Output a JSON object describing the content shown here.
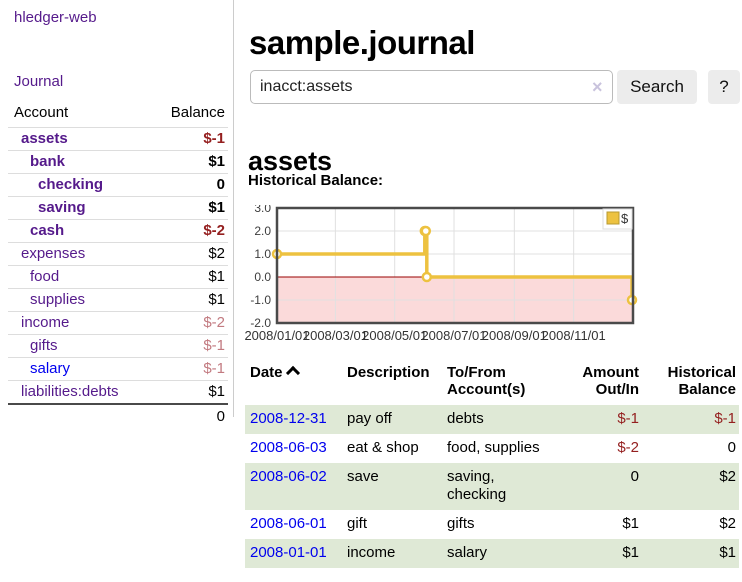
{
  "app": {
    "brand": "hledger-web",
    "nav_journal": "Journal"
  },
  "sidebar": {
    "header": {
      "account": "Account",
      "balance": "Balance"
    },
    "accounts": [
      {
        "name": "assets",
        "balance": "$-1"
      },
      {
        "name": "bank",
        "balance": "$1"
      },
      {
        "name": "checking",
        "balance": "0"
      },
      {
        "name": "saving",
        "balance": "$1"
      },
      {
        "name": "cash",
        "balance": "$-2"
      },
      {
        "name": "expenses",
        "balance": "$2"
      },
      {
        "name": "food",
        "balance": "$1"
      },
      {
        "name": "supplies",
        "balance": "$1"
      },
      {
        "name": "income",
        "balance": "$-2"
      },
      {
        "name": "gifts",
        "balance": "$-1"
      },
      {
        "name": "salary",
        "balance": "$-1"
      },
      {
        "name": "liabilities:debts",
        "balance": "$1"
      }
    ],
    "total": "0"
  },
  "header": {
    "title": "sample.journal"
  },
  "search": {
    "value": "inacct:assets",
    "clear_label": "×",
    "button_label": "Search",
    "help_label": "?"
  },
  "account_page": {
    "heading": "assets",
    "chart_label": "Historical Balance:"
  },
  "chart_data": {
    "type": "line",
    "title": "Historical Balance",
    "series": [
      {
        "name": "$",
        "color": "#EDC240",
        "step": true,
        "points": [
          {
            "date": "2008-01-01",
            "value": 1
          },
          {
            "date": "2008-06-01",
            "value": 2
          },
          {
            "date": "2008-06-02",
            "value": 2
          },
          {
            "date": "2008-06-03",
            "value": 0
          },
          {
            "date": "2008-12-31",
            "value": -1
          }
        ]
      }
    ],
    "ylim": [
      -2,
      3
    ],
    "yticks": [
      {
        "v": 3,
        "label": "3.0"
      },
      {
        "v": 2,
        "label": "2.0"
      },
      {
        "v": 1,
        "label": "1.0"
      },
      {
        "v": 0,
        "label": "0.0"
      },
      {
        "v": -1,
        "label": "-1.0"
      },
      {
        "v": -2,
        "label": "-2.0"
      }
    ],
    "x_start": "2008-01-01",
    "x_end": "2009-01-01",
    "xticks": [
      {
        "date": "2008-01-01",
        "label": "2008/01/01"
      },
      {
        "date": "2008-03-01",
        "label": "2008/03/01"
      },
      {
        "date": "2008-05-01",
        "label": "2008/05/01"
      },
      {
        "date": "2008-07-01",
        "label": "2008/07/01"
      },
      {
        "date": "2008-09-01",
        "label": "2008/09/01"
      },
      {
        "date": "2008-11-01",
        "label": "2008/11/01"
      }
    ],
    "legend": {
      "position": "ne",
      "entries": [
        {
          "label": "$",
          "color": "#EDC240"
        }
      ]
    },
    "grid": true,
    "grid_color": "#e0e0e0",
    "border_color": "#4a4a4a",
    "zero_line_color": "#990000",
    "negative_region_color": "#fbdada"
  },
  "register": {
    "columns": {
      "date": "Date",
      "description": "Description",
      "tofrom_line1": "To/From",
      "tofrom_line2": "Account(s)",
      "amount_line1": "Amount",
      "amount_line2": "Out/In",
      "hist_line1": "Historical",
      "hist_line2": "Balance"
    },
    "rows": [
      {
        "date": "2008-12-31",
        "description": "pay off",
        "accounts": "debts",
        "amount": "$-1",
        "balance": "$-1"
      },
      {
        "date": "2008-06-03",
        "description": "eat & shop",
        "accounts": "food, supplies",
        "amount": "$-2",
        "balance": "0"
      },
      {
        "date": "2008-06-02",
        "description": "save",
        "accounts": "saving, checking",
        "amount": "0",
        "balance": "$2"
      },
      {
        "date": "2008-06-01",
        "description": "gift",
        "accounts": "gifts",
        "amount": "$1",
        "balance": "$2"
      },
      {
        "date": "2008-01-01",
        "description": "income",
        "accounts": "salary",
        "amount": "$1",
        "balance": "$1"
      }
    ]
  },
  "colors": {
    "link_purple": "#551A8B",
    "link_blue": "#0000EE",
    "negative_strong": "#941F1F",
    "negative_soft": "#C27A80",
    "row_stripe_green": "#dfe9d6",
    "chart_line_gold": "#EDC240",
    "chart_negative_pink": "#fbdada",
    "chart_zero_red": "#990000",
    "button_gray": "#ececec"
  }
}
